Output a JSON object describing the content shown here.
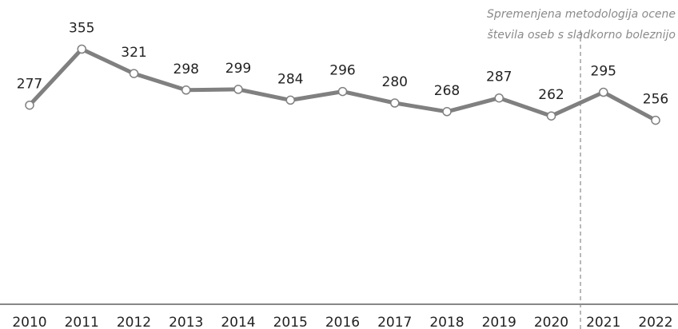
{
  "chart_data": {
    "type": "line",
    "categories": [
      "2010",
      "2011",
      "2012",
      "2013",
      "2014",
      "2015",
      "2016",
      "2017",
      "2018",
      "2019",
      "2020",
      "2021",
      "2022"
    ],
    "values": [
      277,
      355,
      321,
      298,
      299,
      284,
      296,
      280,
      268,
      287,
      262,
      295,
      256
    ],
    "color": "#808080",
    "ylim": [
      0,
      420
    ],
    "annotation": [
      "Spremenjena metodologija ocene",
      "števila oseb s sladkorno boleznijo"
    ]
  }
}
